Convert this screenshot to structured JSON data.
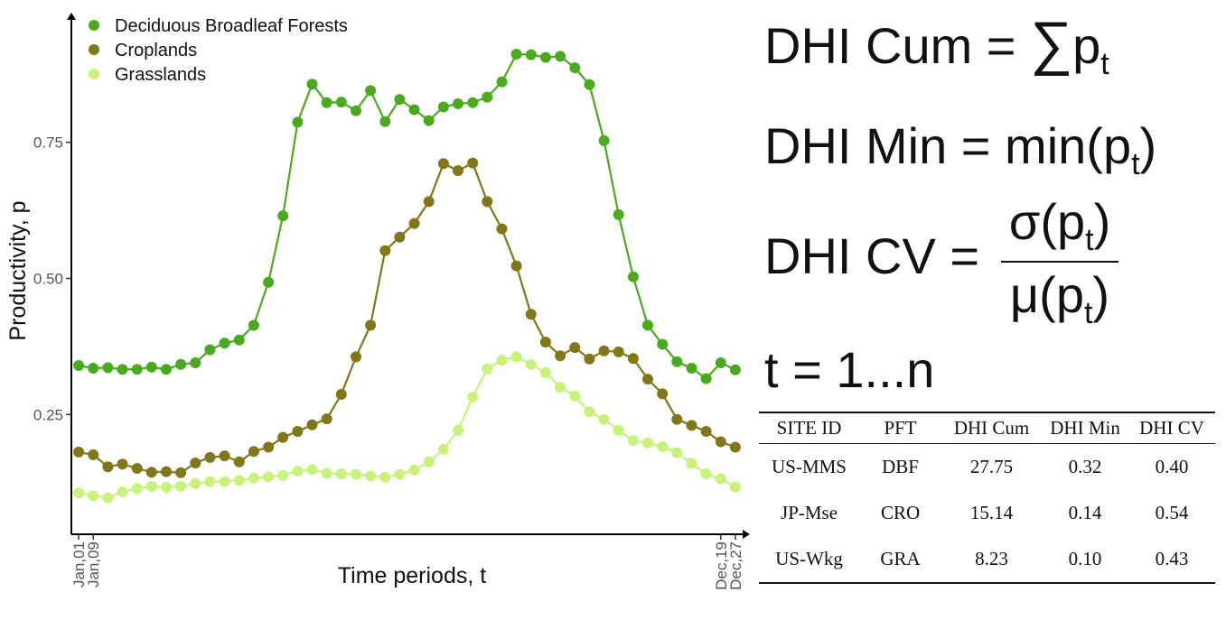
{
  "chart_data": {
    "type": "line",
    "ylabel": "Productivity, p",
    "xlabel": "Time periods, t",
    "yticks": [
      0.25,
      0.5,
      0.75
    ],
    "ytick_labels": [
      "0.25",
      "0.50",
      "0.75"
    ],
    "ylim": [
      0.03,
      0.97
    ],
    "xlim": [
      0.5,
      46.5
    ],
    "x_tick_labels": [
      {
        "x": 1,
        "label": "Jan,01"
      },
      {
        "x": 2,
        "label": "Jan,09"
      },
      {
        "x": 45,
        "label": "Dec,19"
      },
      {
        "x": 46,
        "label": "Dec,27"
      }
    ],
    "grid": false,
    "legend": "top-left",
    "series": [
      {
        "name": "Deciduous Broadleaf Forests",
        "color": "#4aaa1e",
        "values": [
          0.34,
          0.335,
          0.336,
          0.333,
          0.333,
          0.337,
          0.333,
          0.342,
          0.345,
          0.369,
          0.381,
          0.387,
          0.414,
          0.493,
          0.615,
          0.787,
          0.857,
          0.823,
          0.824,
          0.808,
          0.845,
          0.788,
          0.829,
          0.81,
          0.79,
          0.815,
          0.821,
          0.823,
          0.833,
          0.861,
          0.912,
          0.911,
          0.906,
          0.908,
          0.887,
          0.856,
          0.753,
          0.617,
          0.503,
          0.414,
          0.379,
          0.347,
          0.335,
          0.316,
          0.345,
          0.332
        ]
      },
      {
        "name": "Croplands",
        "color": "#807818",
        "values": [
          0.181,
          0.176,
          0.154,
          0.159,
          0.151,
          0.144,
          0.145,
          0.143,
          0.161,
          0.171,
          0.174,
          0.163,
          0.182,
          0.19,
          0.208,
          0.219,
          0.231,
          0.242,
          0.287,
          0.356,
          0.414,
          0.551,
          0.576,
          0.601,
          0.641,
          0.711,
          0.698,
          0.712,
          0.641,
          0.591,
          0.523,
          0.434,
          0.383,
          0.358,
          0.373,
          0.352,
          0.367,
          0.365,
          0.353,
          0.315,
          0.288,
          0.241,
          0.23,
          0.219,
          0.2,
          0.19
        ]
      },
      {
        "name": "Grasslands",
        "color": "#c8f27a",
        "values": [
          0.106,
          0.101,
          0.097,
          0.108,
          0.114,
          0.118,
          0.116,
          0.118,
          0.123,
          0.127,
          0.127,
          0.129,
          0.133,
          0.136,
          0.138,
          0.146,
          0.149,
          0.142,
          0.141,
          0.14,
          0.137,
          0.135,
          0.14,
          0.148,
          0.163,
          0.186,
          0.221,
          0.282,
          0.334,
          0.35,
          0.356,
          0.342,
          0.327,
          0.3,
          0.284,
          0.255,
          0.241,
          0.221,
          0.202,
          0.198,
          0.191,
          0.18,
          0.16,
          0.141,
          0.132,
          0.117
        ]
      }
    ]
  },
  "formulas": {
    "cum_label": "DHI Cum = ",
    "cum_symbol": "∑",
    "cum_p": "p",
    "cum_sub": "t",
    "min_label": "DHI Min = min(p",
    "min_sub": "t",
    "min_close": ")",
    "cv_label": "DHI CV = ",
    "cv_num": "σ(p",
    "cv_num_sub": "t",
    "cv_num_close": ")",
    "cv_den": "μ(p",
    "cv_den_sub": "t",
    "cv_den_close": ")",
    "t_range": "t = 1...n"
  },
  "table": {
    "headers": [
      "SITE ID",
      "PFT",
      "DHI Cum",
      "DHI Min",
      "DHI CV"
    ],
    "rows": [
      [
        "US-MMS",
        "DBF",
        "27.75",
        "0.32",
        "0.40"
      ],
      [
        "JP-Mse",
        "CRO",
        "15.14",
        "0.14",
        "0.54"
      ],
      [
        "US-Wkg",
        "GRA",
        "8.23",
        "0.10",
        "0.43"
      ]
    ]
  }
}
